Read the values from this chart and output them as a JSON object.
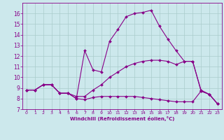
{
  "xlabel": "Windchill (Refroidissement éolien,°C)",
  "bg_color": "#cce8ec",
  "line_color": "#880088",
  "grid_color": "#aacccc",
  "xlim": [
    -0.5,
    23.5
  ],
  "ylim": [
    7,
    17
  ],
  "yticks": [
    7,
    8,
    9,
    10,
    11,
    12,
    13,
    14,
    15,
    16
  ],
  "xticks": [
    0,
    1,
    2,
    3,
    4,
    5,
    6,
    7,
    8,
    9,
    10,
    11,
    12,
    13,
    14,
    15,
    16,
    17,
    18,
    19,
    20,
    21,
    22,
    23
  ],
  "series1_x": [
    0,
    1,
    2,
    3,
    4,
    5,
    6,
    7,
    8,
    9,
    10,
    11,
    12,
    13,
    14,
    15,
    16,
    17,
    18,
    19,
    20,
    21,
    22,
    23
  ],
  "series1_y": [
    8.8,
    8.8,
    9.3,
    9.3,
    8.5,
    8.5,
    8.0,
    12.5,
    10.7,
    10.5,
    13.4,
    14.5,
    15.7,
    16.0,
    16.1,
    16.3,
    14.8,
    13.6,
    12.5,
    11.5,
    11.5,
    8.8,
    8.4,
    7.5
  ],
  "series2_x": [
    0,
    1,
    2,
    3,
    4,
    5,
    6,
    7,
    8,
    9,
    10,
    11,
    12,
    13,
    14,
    15,
    16,
    17,
    18,
    19,
    20,
    21,
    22,
    23
  ],
  "series2_y": [
    8.8,
    8.8,
    9.3,
    9.3,
    8.5,
    8.5,
    8.2,
    8.2,
    8.8,
    9.3,
    10.0,
    10.5,
    11.0,
    11.3,
    11.5,
    11.6,
    11.6,
    11.5,
    11.2,
    11.5,
    11.5,
    8.7,
    8.4,
    7.5
  ],
  "series3_x": [
    0,
    1,
    2,
    3,
    4,
    5,
    6,
    7,
    8,
    9,
    10,
    11,
    12,
    13,
    14,
    15,
    16,
    17,
    18,
    19,
    20,
    21,
    22,
    23
  ],
  "series3_y": [
    8.8,
    8.8,
    9.3,
    9.3,
    8.5,
    8.5,
    8.0,
    7.9,
    8.1,
    8.2,
    8.2,
    8.2,
    8.2,
    8.2,
    8.1,
    8.0,
    7.9,
    7.8,
    7.7,
    7.7,
    7.7,
    8.7,
    8.4,
    7.5
  ]
}
